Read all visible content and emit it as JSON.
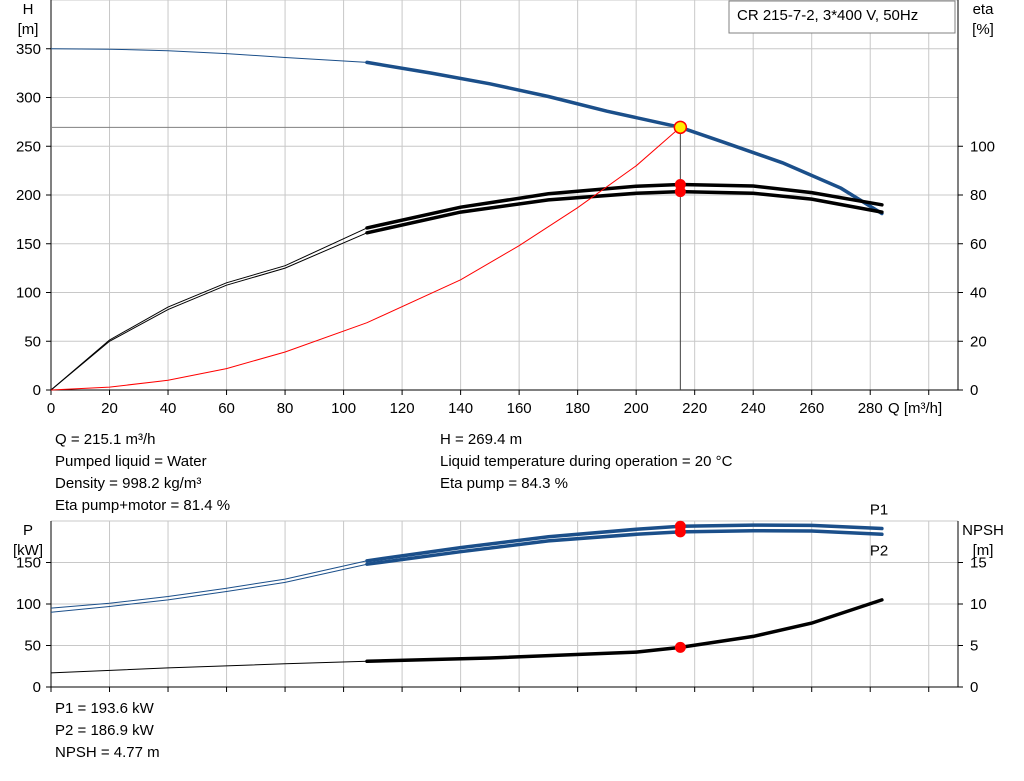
{
  "product_label": "CR 215-7-2, 3*400 V, 50Hz",
  "colors": {
    "blue": "#1b4f8a",
    "red": "#ff0000",
    "grid": "#c8c8c8",
    "duty_point_fill": "#ffee00"
  },
  "duty_info_left": [
    "Q = 215.1 m³/h",
    "Pumped liquid = Water",
    "Density = 998.2 kg/m³",
    "Eta pump+motor = 81.4 %"
  ],
  "duty_info_right": [
    "H = 269.4 m",
    "Liquid temperature during operation = 20 °C",
    "Eta pump = 84.3 %"
  ],
  "power_info": [
    "P1 = 193.6 kW",
    "P2 = 186.9 kW",
    "NPSH = 4.77 m"
  ],
  "chart_data": [
    {
      "type": "line",
      "title": "",
      "xlabel": "Q [m³/h]",
      "ylabel_left": [
        "H",
        "[m]"
      ],
      "ylabel_right": [
        "eta",
        "[%]"
      ],
      "xlim": [
        0,
        310
      ],
      "x_ticks": [
        0,
        20,
        40,
        60,
        80,
        100,
        120,
        140,
        160,
        180,
        200,
        220,
        240,
        260,
        280
      ],
      "ylim_left": [
        0,
        400
      ],
      "y_ticks_left": [
        0,
        50,
        100,
        150,
        200,
        250,
        300,
        350
      ],
      "ylim_right": [
        0,
        160
      ],
      "y_ticks_right": [
        0,
        20,
        40,
        60,
        80,
        100
      ],
      "grid": true,
      "duty_point": {
        "x": 215.1,
        "y": 269.4
      },
      "series": [
        {
          "name": "H",
          "axis": "left",
          "color": "blue",
          "x": [
            0,
            20,
            40,
            60,
            80,
            108,
            130,
            150,
            170,
            190,
            215.1,
            230,
            250,
            270,
            284
          ],
          "y": [
            350,
            349.5,
            348,
            345,
            341,
            336,
            325,
            314,
            301,
            286,
            269.4,
            254,
            233,
            207,
            181
          ]
        },
        {
          "name": "",
          "axis": "right",
          "color": "black",
          "x": [
            0,
            20,
            40,
            60,
            80,
            108,
            140,
            170,
            200,
            215.1,
            240,
            260,
            284
          ],
          "y": [
            0,
            20.5,
            34,
            44,
            51,
            66.5,
            75,
            80.5,
            83.6,
            84.3,
            83.7,
            81,
            76
          ]
        },
        {
          "name": "",
          "axis": "right",
          "color": "black",
          "x": [
            0,
            20,
            40,
            60,
            80,
            108,
            140,
            170,
            200,
            215.1,
            240,
            260,
            284
          ],
          "y": [
            0,
            20,
            33,
            43,
            50,
            64.5,
            73,
            78,
            80.7,
            81.4,
            80.7,
            78.3,
            73
          ]
        },
        {
          "name": "",
          "axis": "left",
          "color": "red",
          "x": [
            0,
            20,
            40,
            60,
            80,
            108,
            140,
            160,
            180,
            200,
            215.1
          ],
          "y": [
            0,
            3,
            10,
            22,
            39,
            69,
            113,
            148,
            187,
            230,
            269.4
          ]
        }
      ]
    },
    {
      "type": "line",
      "title": "",
      "xlim": [
        0,
        310
      ],
      "ylabel_left": [
        "P",
        "[kW]"
      ],
      "ylabel_right": [
        "NPSH",
        "[m]"
      ],
      "ylim_left": [
        0,
        200
      ],
      "y_ticks_left": [
        0,
        50,
        100,
        150
      ],
      "ylim_right": [
        0,
        20
      ],
      "y_ticks_right": [
        0,
        5,
        10,
        15
      ],
      "grid": true,
      "series": [
        {
          "name": "P1",
          "axis": "left",
          "color": "blue",
          "x": [
            0,
            20,
            40,
            60,
            80,
            108,
            140,
            170,
            200,
            215.1,
            240,
            260,
            284
          ],
          "y": [
            95,
            101,
            109,
            119,
            130,
            152,
            168,
            181,
            190,
            193.6,
            195,
            194.7,
            191
          ]
        },
        {
          "name": "P2",
          "axis": "left",
          "color": "blue",
          "x": [
            0,
            20,
            40,
            60,
            80,
            108,
            140,
            170,
            200,
            215.1,
            240,
            260,
            284
          ],
          "y": [
            90,
            97,
            105,
            115,
            126,
            148,
            163,
            176,
            184,
            186.9,
            188.3,
            188,
            184
          ]
        },
        {
          "name": "NPSH",
          "axis": "right",
          "color": "black",
          "x": [
            0,
            40,
            80,
            108,
            150,
            200,
            215.1,
            240,
            260,
            284
          ],
          "y": [
            1.7,
            2.3,
            2.8,
            3.1,
            3.5,
            4.2,
            4.77,
            6.1,
            7.7,
            10.5
          ]
        }
      ]
    }
  ]
}
